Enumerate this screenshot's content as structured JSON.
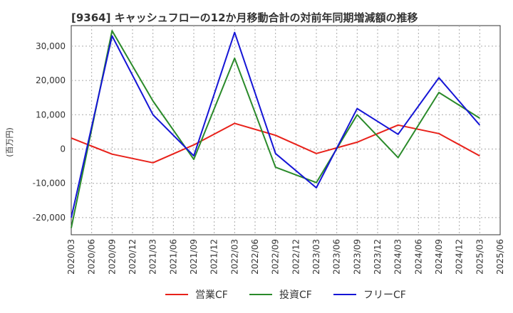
{
  "chart_data": {
    "type": "line",
    "title": "[9364]  キャッシュフローの12か月移動合計の対前年同期増減額の推移",
    "ylabel": "(百万円)",
    "xlabel": "",
    "ylim": [
      -25000,
      36000
    ],
    "yticks": [
      -20000,
      -10000,
      0,
      10000,
      20000,
      30000
    ],
    "ytick_labels": [
      "-20,000",
      "-10,000",
      "0",
      "10,000",
      "20,000",
      "30,000"
    ],
    "grid": true,
    "legend_position": "bottom",
    "x": [
      "2020/03",
      "2020/06",
      "2020/09",
      "2020/12",
      "2021/03",
      "2021/06",
      "2021/09",
      "2021/12",
      "2022/03",
      "2022/06",
      "2022/09",
      "2022/12",
      "2023/03",
      "2023/06",
      "2023/09",
      "2023/12",
      "2024/03",
      "2024/06",
      "2024/09",
      "2024/12",
      "2025/03",
      "2025/06"
    ],
    "series": [
      {
        "name": "営業CF",
        "color": "#e8211a",
        "values": [
          3200,
          null,
          -1500,
          null,
          -4000,
          null,
          1200,
          null,
          7500,
          null,
          4000,
          null,
          -1300,
          null,
          2000,
          null,
          7000,
          null,
          4500,
          null,
          -2000,
          null
        ]
      },
      {
        "name": "投資CF",
        "color": "#2a8a2a",
        "values": [
          -23000,
          null,
          34500,
          null,
          14000,
          null,
          -3000,
          null,
          26500,
          null,
          -5300,
          null,
          -9800,
          null,
          10000,
          null,
          -2500,
          null,
          16500,
          null,
          9000,
          null
        ]
      },
      {
        "name": "フリーCF",
        "color": "#1515d6",
        "values": [
          -20000,
          null,
          33000,
          null,
          10000,
          null,
          -2000,
          null,
          34000,
          null,
          -1300,
          null,
          -11300,
          null,
          11800,
          null,
          4300,
          null,
          20800,
          null,
          7000,
          null
        ]
      }
    ]
  }
}
